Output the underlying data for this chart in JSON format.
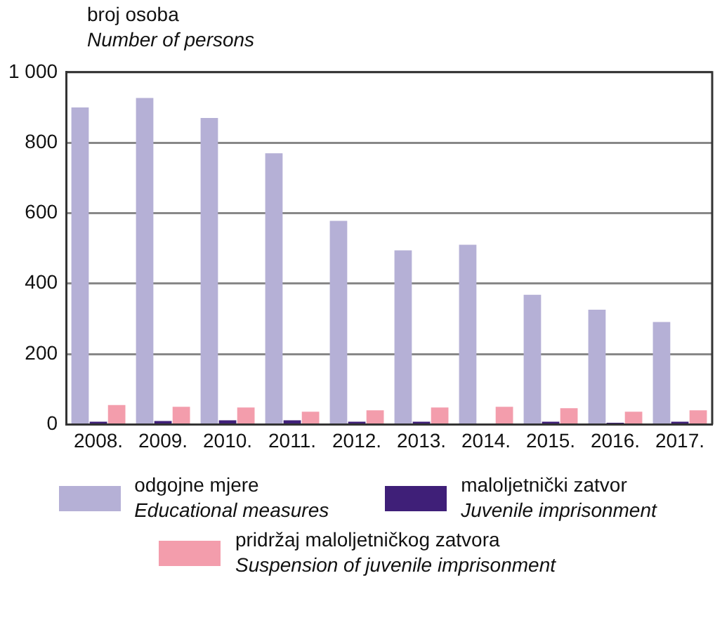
{
  "chart_data": {
    "type": "bar",
    "ylabel": "broj osoba\nNumber of persons",
    "categories": [
      "2008.",
      "2009.",
      "2010.",
      "2011.",
      "2012.",
      "2013.",
      "2014.",
      "2015.",
      "2016.",
      "2017."
    ],
    "series": [
      {
        "name": "odgojne mjere\nEducational measures",
        "color": "#b5b0d6",
        "values": [
          900,
          927,
          870,
          770,
          578,
          494,
          510,
          368,
          326,
          291
        ]
      },
      {
        "name": "maloljetnički zatvor\nJuvenile imprisonment",
        "color": "#3f1f78",
        "values": [
          8,
          10,
          12,
          12,
          8,
          8,
          3,
          8,
          5,
          8
        ]
      },
      {
        "name": "pridržaj maloljetničkog zatvora\nSuspension of juvenile imprisonment",
        "color": "#f39dac",
        "values": [
          55,
          50,
          48,
          36,
          40,
          48,
          50,
          46,
          36,
          40
        ]
      }
    ],
    "ylim": [
      0,
      1000
    ],
    "yticks": [
      0,
      200,
      400,
      600,
      800,
      {
        "value": 1000,
        "label": "1 000"
      }
    ],
    "grid": "y",
    "legend": "bottom"
  }
}
